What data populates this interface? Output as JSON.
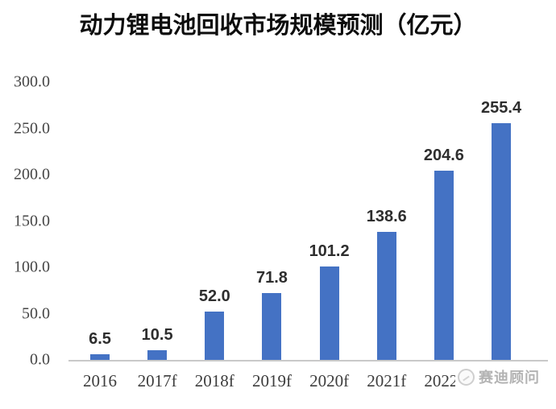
{
  "title": "动力锂电池回收市场规模预测（亿元）",
  "watermark": {
    "text": "赛迪顾问",
    "icon": "circle-logo-icon"
  },
  "chart_data": {
    "type": "bar",
    "title": "动力锂电池回收市场规模预测（亿元）",
    "categories": [
      "2016",
      "2017f",
      "2018f",
      "2019f",
      "2020f",
      "2021f",
      "2022f",
      ""
    ],
    "values": [
      6.5,
      10.5,
      52.0,
      71.8,
      101.2,
      138.6,
      204.6,
      255.4
    ],
    "value_labels": [
      "6.5",
      "10.5",
      "52.0",
      "71.8",
      "101.2",
      "138.6",
      "204.6",
      "255.4"
    ],
    "xlabel": "",
    "ylabel": "",
    "ylim": [
      0,
      300
    ],
    "ytick_labels": [
      "300.0",
      "250.0",
      "200.0",
      "150.0",
      "100.0",
      "50.0",
      "0.0"
    ],
    "ytick_values": [
      300,
      250,
      200,
      150,
      100,
      50,
      0
    ],
    "grid": false,
    "legend": "none",
    "bar_color": "#4472c4",
    "axis_line_color": "#c9c9c9"
  }
}
